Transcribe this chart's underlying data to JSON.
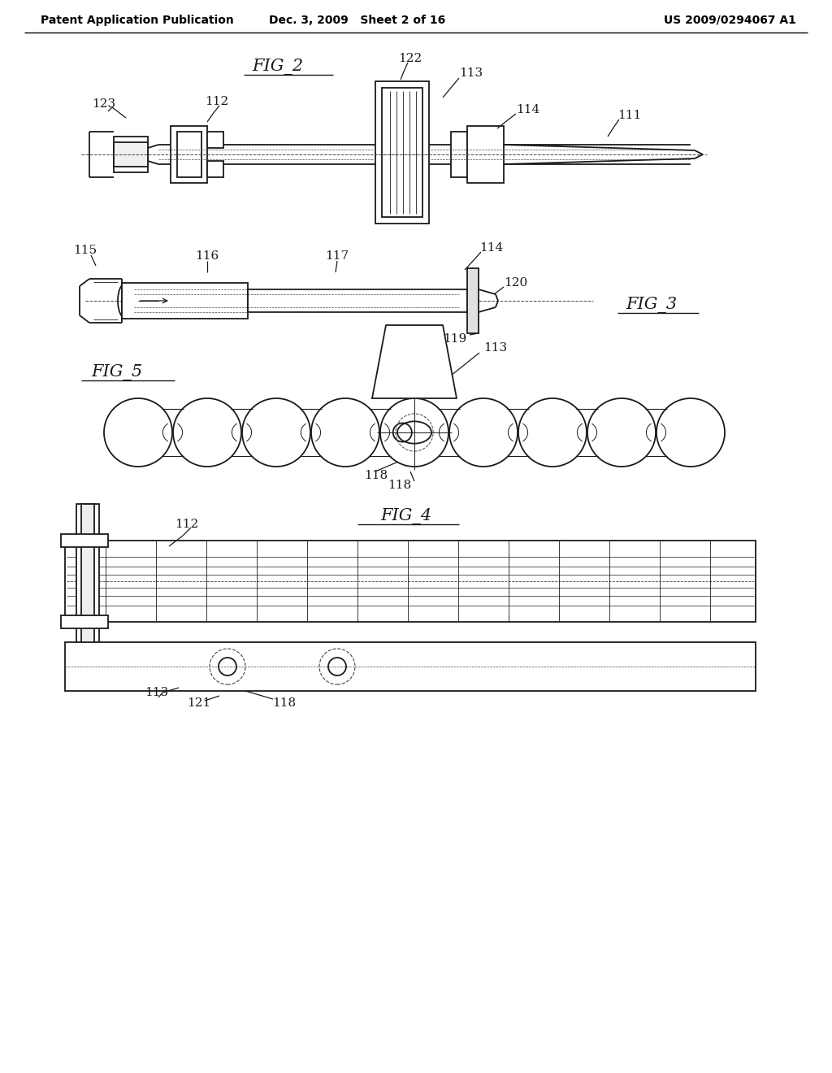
{
  "bg_color": "#ffffff",
  "header_left": "Patent Application Publication",
  "header_mid": "Dec. 3, 2009   Sheet 2 of 16",
  "header_right": "US 2009/0294067 A1",
  "line_color": "#1a1a1a",
  "line_width": 1.3,
  "dash_color": "#444444",
  "label_fontsize": 11,
  "fig_label_fontsize": 15
}
